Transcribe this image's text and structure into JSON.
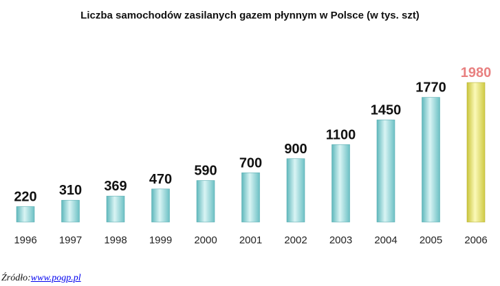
{
  "source": {
    "label": "Źródło:",
    "link_text": "www.pogp.pl"
  },
  "colors": {
    "bar": "#8fd6d8",
    "highlight_bar": "#e0e060",
    "highlight_label": "#e88080",
    "label": "#111111"
  },
  "chart_data": {
    "type": "bar",
    "title": "Liczba samochodów zasilanych gazem płynnym w Polsce (w tys. szt)",
    "xlabel": "",
    "ylabel": "",
    "categories": [
      "1996",
      "1997",
      "1998",
      "1999",
      "2000",
      "2001",
      "2002",
      "2003",
      "2004",
      "2005",
      "2006"
    ],
    "values": [
      220,
      310,
      369,
      470,
      590,
      700,
      900,
      1100,
      1450,
      1770,
      1980
    ],
    "highlight": "2006",
    "grid": false,
    "legend": "none"
  }
}
